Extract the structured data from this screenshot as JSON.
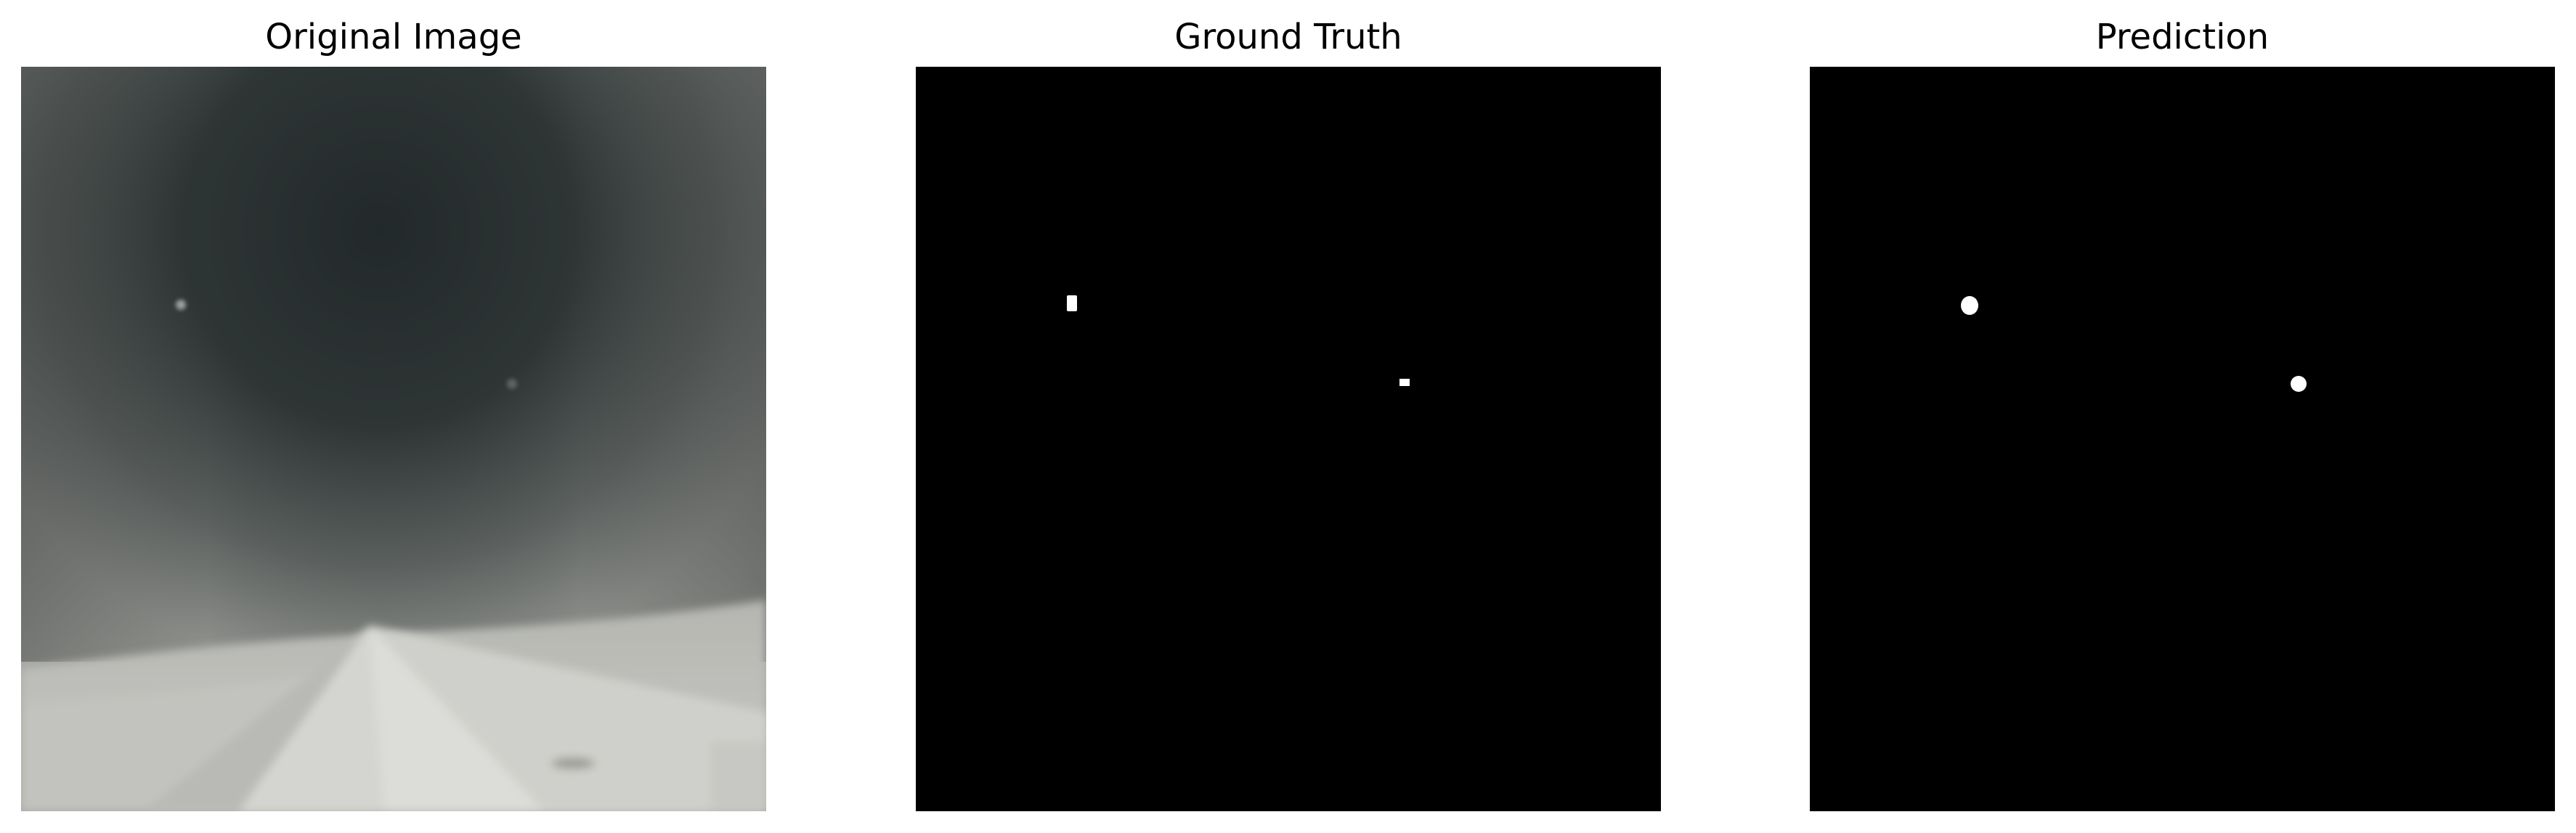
{
  "figure": {
    "panels": [
      {
        "title": "Original Image",
        "kind": "photo",
        "tint": "grayscale"
      },
      {
        "title": "Ground Truth",
        "kind": "mask",
        "background": "#000000",
        "foreground": "#ffffff"
      },
      {
        "title": "Prediction",
        "kind": "mask",
        "background": "#000000",
        "foreground": "#ffffff"
      }
    ]
  }
}
